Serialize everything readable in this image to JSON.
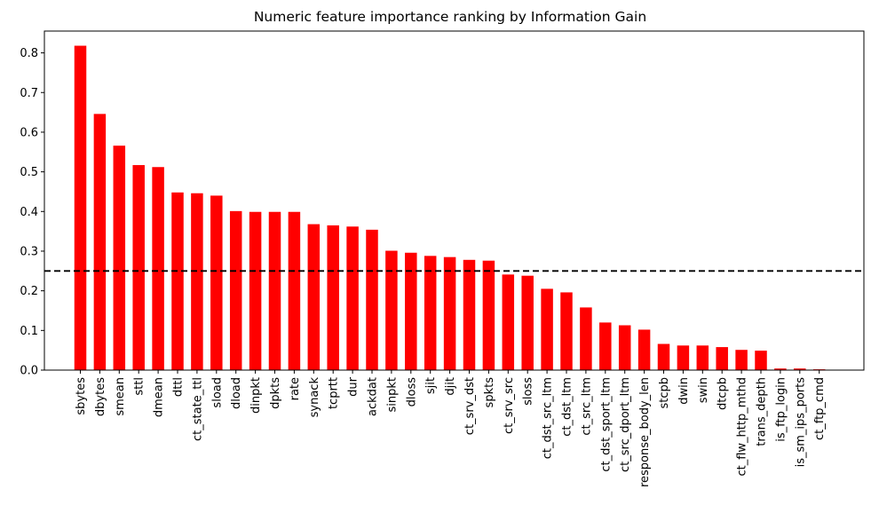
{
  "chart_data": {
    "type": "bar",
    "title": "Numeric feature importance ranking by Information Gain",
    "xlabel": "",
    "ylabel": "",
    "ylim": [
      0,
      0.855
    ],
    "yticks": [
      0.0,
      0.1,
      0.2,
      0.3,
      0.4,
      0.5,
      0.6,
      0.7,
      0.8
    ],
    "ytick_labels": [
      "0.0",
      "0.1",
      "0.2",
      "0.3",
      "0.4",
      "0.5",
      "0.6",
      "0.7",
      "0.8"
    ],
    "threshold": 0.25,
    "bar_color": "#ff0000",
    "threshold_color": "#000000",
    "grid": false,
    "categories": [
      "sbytes",
      "dbytes",
      "smean",
      "sttl",
      "dmean",
      "dttl",
      "ct_state_ttl",
      "sload",
      "dload",
      "dinpkt",
      "dpkts",
      "rate",
      "synack",
      "tcprtt",
      "dur",
      "ackdat",
      "sinpkt",
      "dloss",
      "sjit",
      "djit",
      "ct_srv_dst",
      "spkts",
      "ct_srv_src",
      "sloss",
      "ct_dst_src_ltm",
      "ct_dst_ltm",
      "ct_src_ltm",
      "ct_dst_sport_ltm",
      "ct_src_dport_ltm",
      "response_body_len",
      "stcpb",
      "dwin",
      "swin",
      "dtcpb",
      "ct_flw_http_mthd",
      "trans_depth",
      "is_ftp_login",
      "is_sm_ips_ports",
      "ct_ftp_cmd"
    ],
    "values": [
      0.818,
      0.646,
      0.566,
      0.517,
      0.512,
      0.448,
      0.446,
      0.44,
      0.401,
      0.399,
      0.399,
      0.399,
      0.368,
      0.365,
      0.362,
      0.354,
      0.301,
      0.296,
      0.288,
      0.285,
      0.278,
      0.276,
      0.241,
      0.238,
      0.205,
      0.196,
      0.158,
      0.12,
      0.113,
      0.102,
      0.066,
      0.062,
      0.062,
      0.058,
      0.051,
      0.049,
      0.004,
      0.004,
      0.002
    ]
  }
}
